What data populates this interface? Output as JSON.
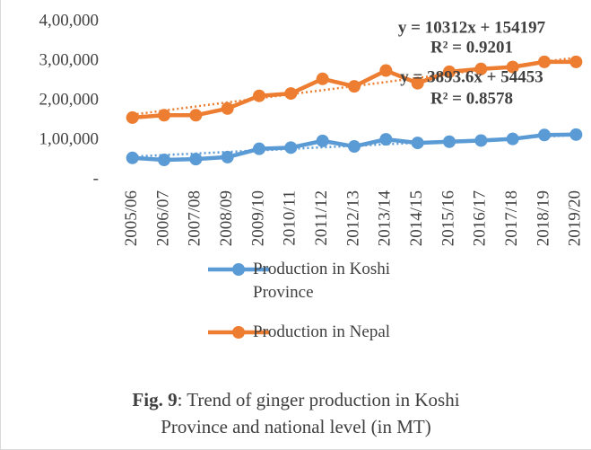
{
  "chart_data": {
    "type": "line",
    "categories": [
      "2005/06",
      "2006/07",
      "2007/08",
      "2008/09",
      "2009/10",
      "2010/11",
      "2011/12",
      "2012/13",
      "2013/14",
      "2014/15",
      "2015/16",
      "2016/17",
      "2017/18",
      "2018/19",
      "2019/20"
    ],
    "series": [
      {
        "name": "Production in Koshi Province",
        "color": "#5b9bd5",
        "values": [
          55000,
          50000,
          52000,
          57000,
          78000,
          81000,
          98000,
          84000,
          102000,
          93000,
          96000,
          99000,
          103000,
          113000,
          114000
        ],
        "trendline": {
          "slope": 3893.6,
          "intercept": 54453,
          "label": "y = 3893.6x + 54453",
          "r2_label": "R² = 0.8578"
        }
      },
      {
        "name": "Production in Nepal",
        "color": "#ed7d31",
        "values": [
          157000,
          163000,
          163000,
          180000,
          212000,
          218000,
          255000,
          236000,
          276000,
          244000,
          273000,
          280000,
          285000,
          298000,
          298000
        ],
        "trendline": {
          "slope": 10312,
          "intercept": 154197,
          "label": "y = 10312x + 154197",
          "r2_label": "R² = 0.9201"
        }
      }
    ],
    "ylim": [
      0,
      400000
    ],
    "yticks": [
      {
        "value": 0,
        "label": "-"
      },
      {
        "value": 100000,
        "label": "1,00,000"
      },
      {
        "value": 200000,
        "label": "2,00,000"
      },
      {
        "value": 300000,
        "label": "3,00,000"
      },
      {
        "value": 400000,
        "label": "4,00,000"
      }
    ],
    "grid": false,
    "legend": "bottom"
  },
  "caption": {
    "label": "Fig. 9",
    "text": ": Trend of ginger production in Koshi Province and national level (in MT)"
  }
}
